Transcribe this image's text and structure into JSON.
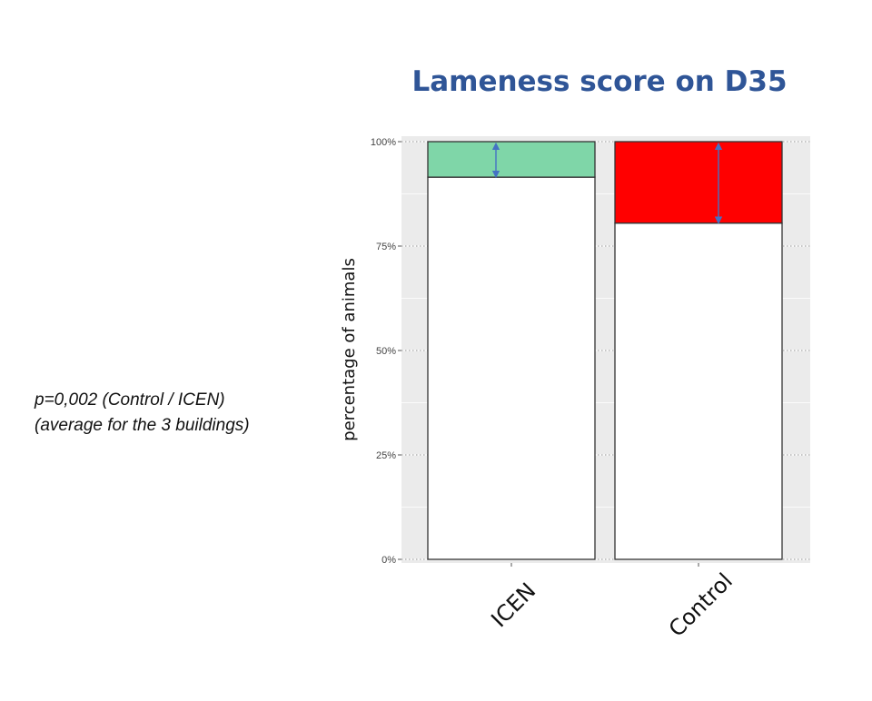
{
  "chart_data": {
    "type": "bar",
    "stacked": true,
    "title": "Lameness score on D35",
    "xlabel": "",
    "ylabel": "percentage of animals",
    "categories": [
      "ICEN",
      "Control"
    ],
    "series": [
      {
        "values": [
          91.5,
          80.5
        ],
        "color": "#ffffff"
      },
      {
        "values": [
          8.5,
          19.5
        ],
        "colors": [
          "#7fd6a8",
          "#ff0000"
        ]
      }
    ],
    "ylim": [
      0,
      100
    ],
    "yticks": [
      0,
      25,
      50,
      75,
      100
    ],
    "ytick_labels": [
      "0%",
      "25%",
      "50%",
      "75%",
      "100%"
    ],
    "grid": true,
    "panel_background": "#ebebeb",
    "arrow_color": "#4472c4"
  },
  "annotation": {
    "line1": "p=0,002 (Control / ICEN)",
    "line2": "(average for the 3 buildings)"
  }
}
